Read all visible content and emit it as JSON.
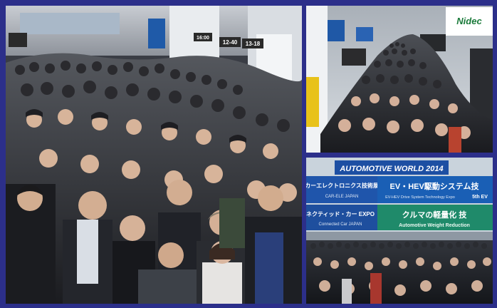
{
  "photos": {
    "left": {
      "signs": [
        "12-40",
        "13-18",
        "16:00"
      ]
    },
    "top_right": {
      "brand_sign": "Nidec"
    },
    "bottom_right": {
      "banner_title": "AUTOMOTIVE WORLD 2014",
      "row1_left": "カーエレクトロニクス技術展",
      "row1_left_sub": "CAR-ELE JAPAN",
      "row1_right": "EV・HEV駆動システム技",
      "row1_right_sub": "EV-HEV Drive System Technology Expo",
      "row1_right_tag": "5th EV",
      "row2_left": "ネクティッド・カー EXPO",
      "row2_left_sub": "Connected Car JAPAN",
      "row2_right": "クルマの軽量化 技",
      "row2_right_sub": "Automotive Weight Reduction"
    }
  },
  "colors": {
    "frame": "#2c2f8a",
    "banner_blue": "#1a4fa8",
    "banner_green": "#1f8a6a",
    "crowd_dark": "#1c1d22"
  }
}
